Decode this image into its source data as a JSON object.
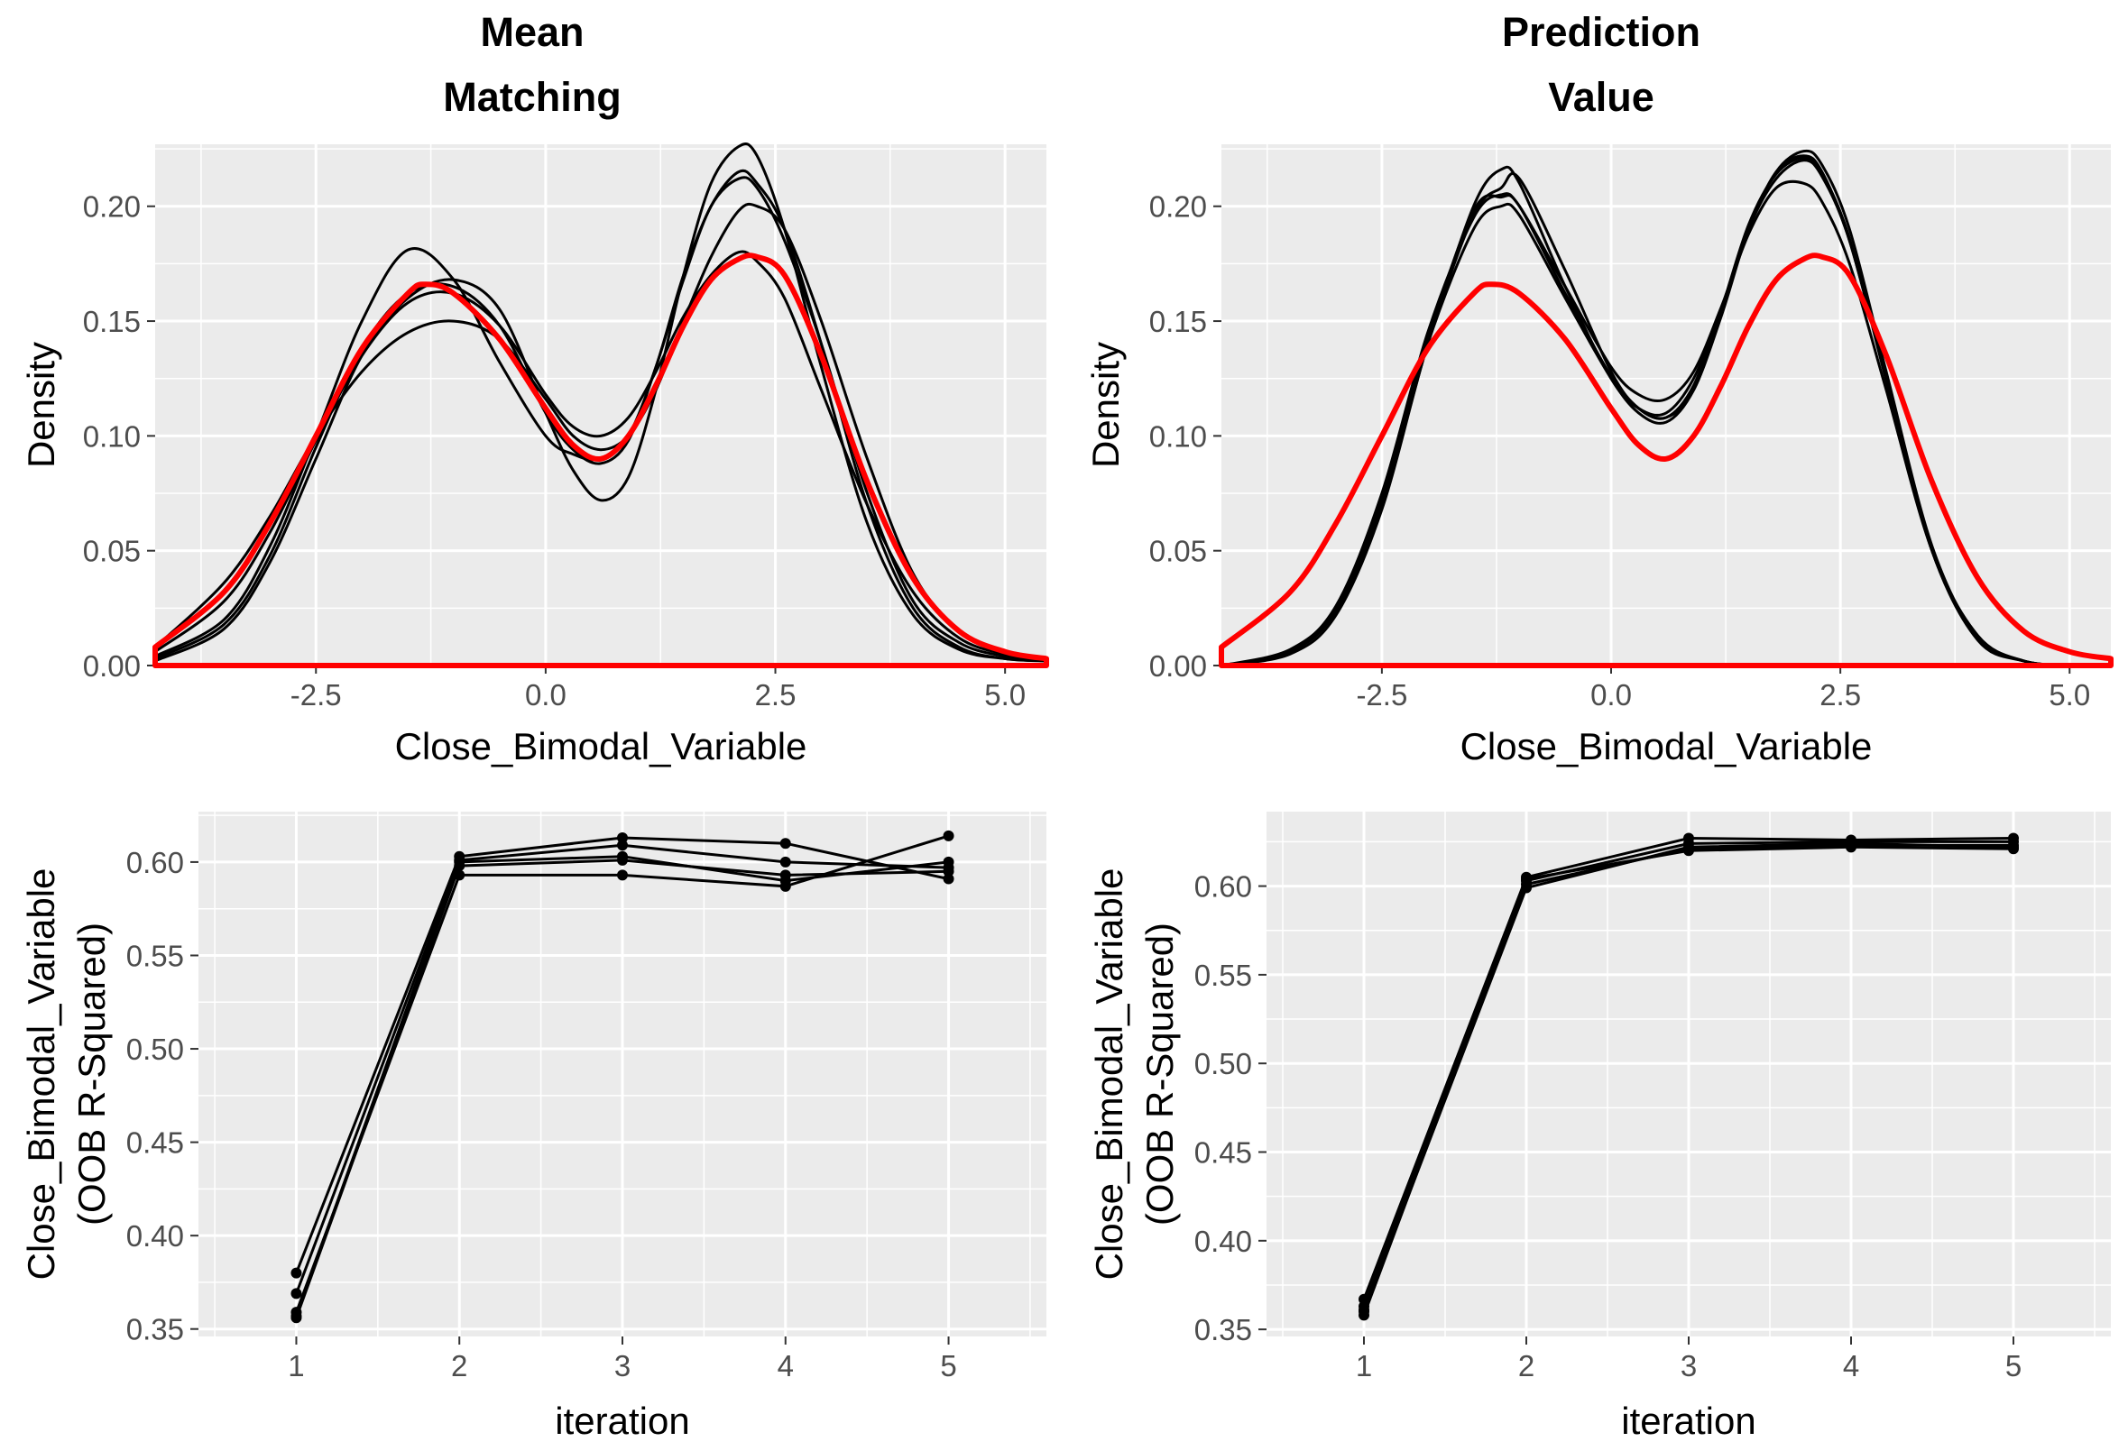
{
  "columns": [
    {
      "title_line1": "Mean",
      "title_line2": "Matching"
    },
    {
      "title_line1": "Prediction",
      "title_line2": "Value"
    }
  ],
  "colors": {
    "panel": "#ebebeb",
    "grid": "#ffffff",
    "imputed": "#000000",
    "observed": "#ff0000",
    "tick_text": "#4d4d4d"
  },
  "chart_data": [
    {
      "type": "line",
      "id": "density_mean_matching",
      "title": "Mean Matching",
      "xlabel": "Close_Bimodal_Variable",
      "ylabel": "Density",
      "xlim": [
        -4.25,
        5.45
      ],
      "ylim": [
        0,
        0.227
      ],
      "xticks": [
        -2.5,
        0.0,
        2.5,
        5.0
      ],
      "xtick_labels": [
        "-2.5",
        "0.0",
        "2.5",
        "5.0"
      ],
      "yticks": [
        0,
        0.05,
        0.1,
        0.15,
        0.2
      ],
      "ytick_labels": [
        "0.00",
        "0.05",
        "0.10",
        "0.15",
        "0.20"
      ],
      "grid": true,
      "observed": {
        "x": [
          -4.25,
          -3.5,
          -3.0,
          -2.5,
          -2.0,
          -1.5,
          -1.3,
          -1.0,
          -0.5,
          0.0,
          0.3,
          0.6,
          0.9,
          1.2,
          1.5,
          1.8,
          2.1,
          2.3,
          2.6,
          3.0,
          3.5,
          4.0,
          4.5,
          5.0,
          5.45
        ],
        "y": [
          0.008,
          0.032,
          0.062,
          0.1,
          0.138,
          0.162,
          0.166,
          0.162,
          0.142,
          0.112,
          0.096,
          0.09,
          0.1,
          0.122,
          0.148,
          0.168,
          0.177,
          0.178,
          0.17,
          0.135,
          0.08,
          0.038,
          0.015,
          0.006,
          0.003
        ]
      },
      "imputed": [
        {
          "x": [
            -4.25,
            -3.5,
            -3.0,
            -2.5,
            -2.0,
            -1.5,
            -1.0,
            -0.5,
            0.0,
            0.3,
            0.6,
            0.9,
            1.2,
            1.5,
            1.8,
            2.1,
            2.3,
            2.6,
            3.0,
            3.5,
            4.0,
            4.5,
            5.0,
            5.45
          ],
          "y": [
            0.004,
            0.02,
            0.052,
            0.1,
            0.15,
            0.181,
            0.168,
            0.132,
            0.1,
            0.092,
            0.09,
            0.1,
            0.13,
            0.17,
            0.2,
            0.215,
            0.21,
            0.19,
            0.14,
            0.07,
            0.025,
            0.008,
            0.003,
            0.002
          ]
        },
        {
          "x": [
            -4.25,
            -3.5,
            -3.0,
            -2.5,
            -2.0,
            -1.5,
            -1.0,
            -0.5,
            0.0,
            0.3,
            0.6,
            0.9,
            1.2,
            1.5,
            1.8,
            2.1,
            2.3,
            2.6,
            3.0,
            3.5,
            4.0,
            4.5,
            5.0,
            5.45
          ],
          "y": [
            0.006,
            0.028,
            0.058,
            0.098,
            0.135,
            0.158,
            0.162,
            0.148,
            0.118,
            0.104,
            0.1,
            0.108,
            0.128,
            0.152,
            0.17,
            0.18,
            0.176,
            0.16,
            0.12,
            0.07,
            0.032,
            0.012,
            0.005,
            0.003
          ]
        },
        {
          "x": [
            -4.25,
            -3.5,
            -3.0,
            -2.5,
            -2.0,
            -1.5,
            -1.0,
            -0.5,
            0.0,
            0.3,
            0.6,
            0.9,
            1.2,
            1.5,
            1.8,
            2.1,
            2.3,
            2.6,
            3.0,
            3.5,
            4.0,
            4.5,
            5.0,
            5.45
          ],
          "y": [
            0.003,
            0.018,
            0.048,
            0.095,
            0.138,
            0.162,
            0.165,
            0.148,
            0.11,
            0.094,
            0.088,
            0.098,
            0.13,
            0.168,
            0.2,
            0.212,
            0.208,
            0.185,
            0.14,
            0.075,
            0.028,
            0.01,
            0.004,
            0.002
          ]
        },
        {
          "x": [
            -4.25,
            -3.5,
            -3.0,
            -2.5,
            -2.0,
            -1.5,
            -1.0,
            -0.5,
            0.0,
            0.3,
            0.6,
            0.9,
            1.2,
            1.5,
            1.8,
            2.1,
            2.3,
            2.6,
            3.0,
            3.5,
            4.0,
            4.5,
            5.0,
            5.45
          ],
          "y": [
            0.002,
            0.016,
            0.045,
            0.09,
            0.135,
            0.16,
            0.168,
            0.155,
            0.11,
            0.085,
            0.072,
            0.082,
            0.12,
            0.17,
            0.21,
            0.226,
            0.222,
            0.19,
            0.13,
            0.062,
            0.022,
            0.007,
            0.003,
            0.002
          ]
        },
        {
          "x": [
            -4.25,
            -3.5,
            -3.0,
            -2.5,
            -2.0,
            -1.5,
            -1.0,
            -0.5,
            0.0,
            0.3,
            0.6,
            0.9,
            1.2,
            1.5,
            1.8,
            2.1,
            2.3,
            2.6,
            3.0,
            3.5,
            4.0,
            4.5,
            5.0,
            5.45
          ],
          "y": [
            0.008,
            0.036,
            0.065,
            0.1,
            0.128,
            0.145,
            0.15,
            0.142,
            0.116,
            0.1,
            0.094,
            0.1,
            0.12,
            0.15,
            0.178,
            0.198,
            0.2,
            0.19,
            0.15,
            0.09,
            0.04,
            0.015,
            0.006,
            0.003
          ]
        }
      ]
    },
    {
      "type": "line",
      "id": "density_prediction_value",
      "title": "Prediction Value",
      "xlabel": "Close_Bimodal_Variable",
      "ylabel": "Density",
      "xlim": [
        -4.25,
        5.45
      ],
      "ylim": [
        0,
        0.227
      ],
      "xticks": [
        -2.5,
        0.0,
        2.5,
        5.0
      ],
      "xtick_labels": [
        "-2.5",
        "0.0",
        "2.5",
        "5.0"
      ],
      "yticks": [
        0,
        0.05,
        0.1,
        0.15,
        0.2
      ],
      "ytick_labels": [
        "0.00",
        "0.05",
        "0.10",
        "0.15",
        "0.20"
      ],
      "grid": true,
      "observed": {
        "x": [
          -4.25,
          -3.5,
          -3.0,
          -2.5,
          -2.0,
          -1.5,
          -1.3,
          -1.0,
          -0.5,
          0.0,
          0.3,
          0.6,
          0.9,
          1.2,
          1.5,
          1.8,
          2.1,
          2.3,
          2.6,
          3.0,
          3.5,
          4.0,
          4.5,
          5.0,
          5.45
        ],
        "y": [
          0.008,
          0.032,
          0.062,
          0.1,
          0.138,
          0.162,
          0.166,
          0.162,
          0.142,
          0.112,
          0.096,
          0.09,
          0.1,
          0.122,
          0.148,
          0.168,
          0.177,
          0.178,
          0.17,
          0.135,
          0.08,
          0.038,
          0.015,
          0.006,
          0.003
        ]
      },
      "imputed": [
        {
          "x": [
            -4.25,
            -3.5,
            -3.0,
            -2.5,
            -2.0,
            -1.5,
            -1.2,
            -1.0,
            -0.5,
            0.0,
            0.3,
            0.6,
            0.9,
            1.2,
            1.5,
            1.8,
            2.1,
            2.3,
            2.6,
            3.0,
            3.5,
            4.0,
            4.5,
            5.0,
            5.45
          ],
          "y": [
            0.0,
            0.006,
            0.024,
            0.07,
            0.14,
            0.2,
            0.216,
            0.21,
            0.165,
            0.125,
            0.112,
            0.11,
            0.125,
            0.155,
            0.19,
            0.215,
            0.222,
            0.215,
            0.185,
            0.125,
            0.05,
            0.012,
            0.002,
            0.0,
            0.0
          ]
        },
        {
          "x": [
            -4.25,
            -3.5,
            -3.0,
            -2.5,
            -2.0,
            -1.5,
            -1.2,
            -1.0,
            -0.5,
            0.0,
            0.3,
            0.6,
            0.9,
            1.2,
            1.5,
            1.8,
            2.1,
            2.3,
            2.6,
            3.0,
            3.5,
            4.0,
            4.5,
            5.0,
            5.45
          ],
          "y": [
            0.0,
            0.007,
            0.026,
            0.075,
            0.145,
            0.195,
            0.205,
            0.2,
            0.165,
            0.13,
            0.118,
            0.116,
            0.128,
            0.156,
            0.188,
            0.208,
            0.21,
            0.202,
            0.175,
            0.12,
            0.05,
            0.013,
            0.002,
            0.0,
            0.0
          ]
        },
        {
          "x": [
            -4.25,
            -3.5,
            -3.0,
            -2.5,
            -2.0,
            -1.5,
            -1.2,
            -1.0,
            -0.5,
            0.0,
            0.3,
            0.6,
            0.9,
            1.2,
            1.5,
            1.8,
            2.1,
            2.3,
            2.6,
            3.0,
            3.5,
            4.0,
            4.5,
            5.0,
            5.45
          ],
          "y": [
            0.0,
            0.006,
            0.025,
            0.07,
            0.14,
            0.19,
            0.2,
            0.196,
            0.16,
            0.125,
            0.11,
            0.106,
            0.12,
            0.152,
            0.19,
            0.215,
            0.224,
            0.218,
            0.19,
            0.128,
            0.052,
            0.012,
            0.002,
            0.0,
            0.0
          ]
        },
        {
          "x": [
            -4.25,
            -3.5,
            -3.0,
            -2.5,
            -2.0,
            -1.5,
            -1.2,
            -1.0,
            -0.5,
            0.0,
            0.3,
            0.6,
            0.9,
            1.2,
            1.5,
            1.8,
            2.1,
            2.3,
            2.6,
            3.0,
            3.5,
            4.0,
            4.5,
            5.0,
            5.45
          ],
          "y": [
            0.0,
            0.005,
            0.022,
            0.068,
            0.14,
            0.196,
            0.208,
            0.212,
            0.172,
            0.128,
            0.112,
            0.108,
            0.12,
            0.153,
            0.19,
            0.212,
            0.22,
            0.213,
            0.185,
            0.125,
            0.05,
            0.011,
            0.002,
            0.0,
            0.0
          ]
        },
        {
          "x": [
            -4.25,
            -3.5,
            -3.0,
            -2.5,
            -2.0,
            -1.5,
            -1.2,
            -1.0,
            -0.5,
            0.0,
            0.3,
            0.6,
            0.9,
            1.2,
            1.5,
            1.8,
            2.1,
            2.3,
            2.6,
            3.0,
            3.5,
            4.0,
            4.5,
            5.0,
            5.45
          ],
          "y": [
            0.0,
            0.006,
            0.024,
            0.072,
            0.142,
            0.198,
            0.204,
            0.2,
            0.162,
            0.126,
            0.112,
            0.108,
            0.122,
            0.155,
            0.192,
            0.214,
            0.221,
            0.214,
            0.186,
            0.124,
            0.05,
            0.012,
            0.002,
            0.0,
            0.0
          ]
        }
      ]
    },
    {
      "type": "line",
      "id": "convergence_mean_matching",
      "xlabel": "iteration",
      "ylabel_line1": "Close_Bimodal_Variable",
      "ylabel_line2": "(OOB R-Squared)",
      "xlim": [
        0.4,
        5.6
      ],
      "ylim": [
        0.346,
        0.627
      ],
      "xticks": [
        1,
        2,
        3,
        4,
        5
      ],
      "xtick_labels": [
        "1",
        "2",
        "3",
        "4",
        "5"
      ],
      "yticks": [
        0.35,
        0.4,
        0.45,
        0.5,
        0.55,
        0.6
      ],
      "ytick_labels": [
        "0.35",
        "0.40",
        "0.45",
        "0.50",
        "0.55",
        "0.60"
      ],
      "grid": true,
      "x": [
        1,
        2,
        3,
        4,
        5
      ],
      "series": [
        {
          "values": [
            0.38,
            0.603,
            0.613,
            0.61,
            0.591
          ]
        },
        {
          "values": [
            0.369,
            0.601,
            0.609,
            0.6,
            0.597
          ]
        },
        {
          "values": [
            0.359,
            0.593,
            0.593,
            0.587,
            0.614
          ]
        },
        {
          "values": [
            0.357,
            0.6,
            0.603,
            0.59,
            0.6
          ]
        },
        {
          "values": [
            0.356,
            0.598,
            0.601,
            0.593,
            0.595
          ]
        }
      ]
    },
    {
      "type": "line",
      "id": "convergence_prediction_value",
      "xlabel": "iteration",
      "ylabel_line1": "Close_Bimodal_Variable",
      "ylabel_line2": "(OOB R-Squared)",
      "xlim": [
        0.4,
        5.6
      ],
      "ylim": [
        0.346,
        0.642
      ],
      "xticks": [
        1,
        2,
        3,
        4,
        5
      ],
      "xtick_labels": [
        "1",
        "2",
        "3",
        "4",
        "5"
      ],
      "yticks": [
        0.35,
        0.4,
        0.45,
        0.5,
        0.55,
        0.6
      ],
      "ytick_labels": [
        "0.35",
        "0.40",
        "0.45",
        "0.50",
        "0.55",
        "0.60"
      ],
      "grid": true,
      "x": [
        1,
        2,
        3,
        4,
        5
      ],
      "series": [
        {
          "values": [
            0.367,
            0.605,
            0.627,
            0.626,
            0.627
          ]
        },
        {
          "values": [
            0.363,
            0.603,
            0.624,
            0.625,
            0.625
          ]
        },
        {
          "values": [
            0.361,
            0.601,
            0.621,
            0.623,
            0.623
          ]
        },
        {
          "values": [
            0.36,
            0.599,
            0.622,
            0.624,
            0.622
          ]
        },
        {
          "values": [
            0.358,
            0.604,
            0.62,
            0.622,
            0.621
          ]
        }
      ]
    }
  ]
}
